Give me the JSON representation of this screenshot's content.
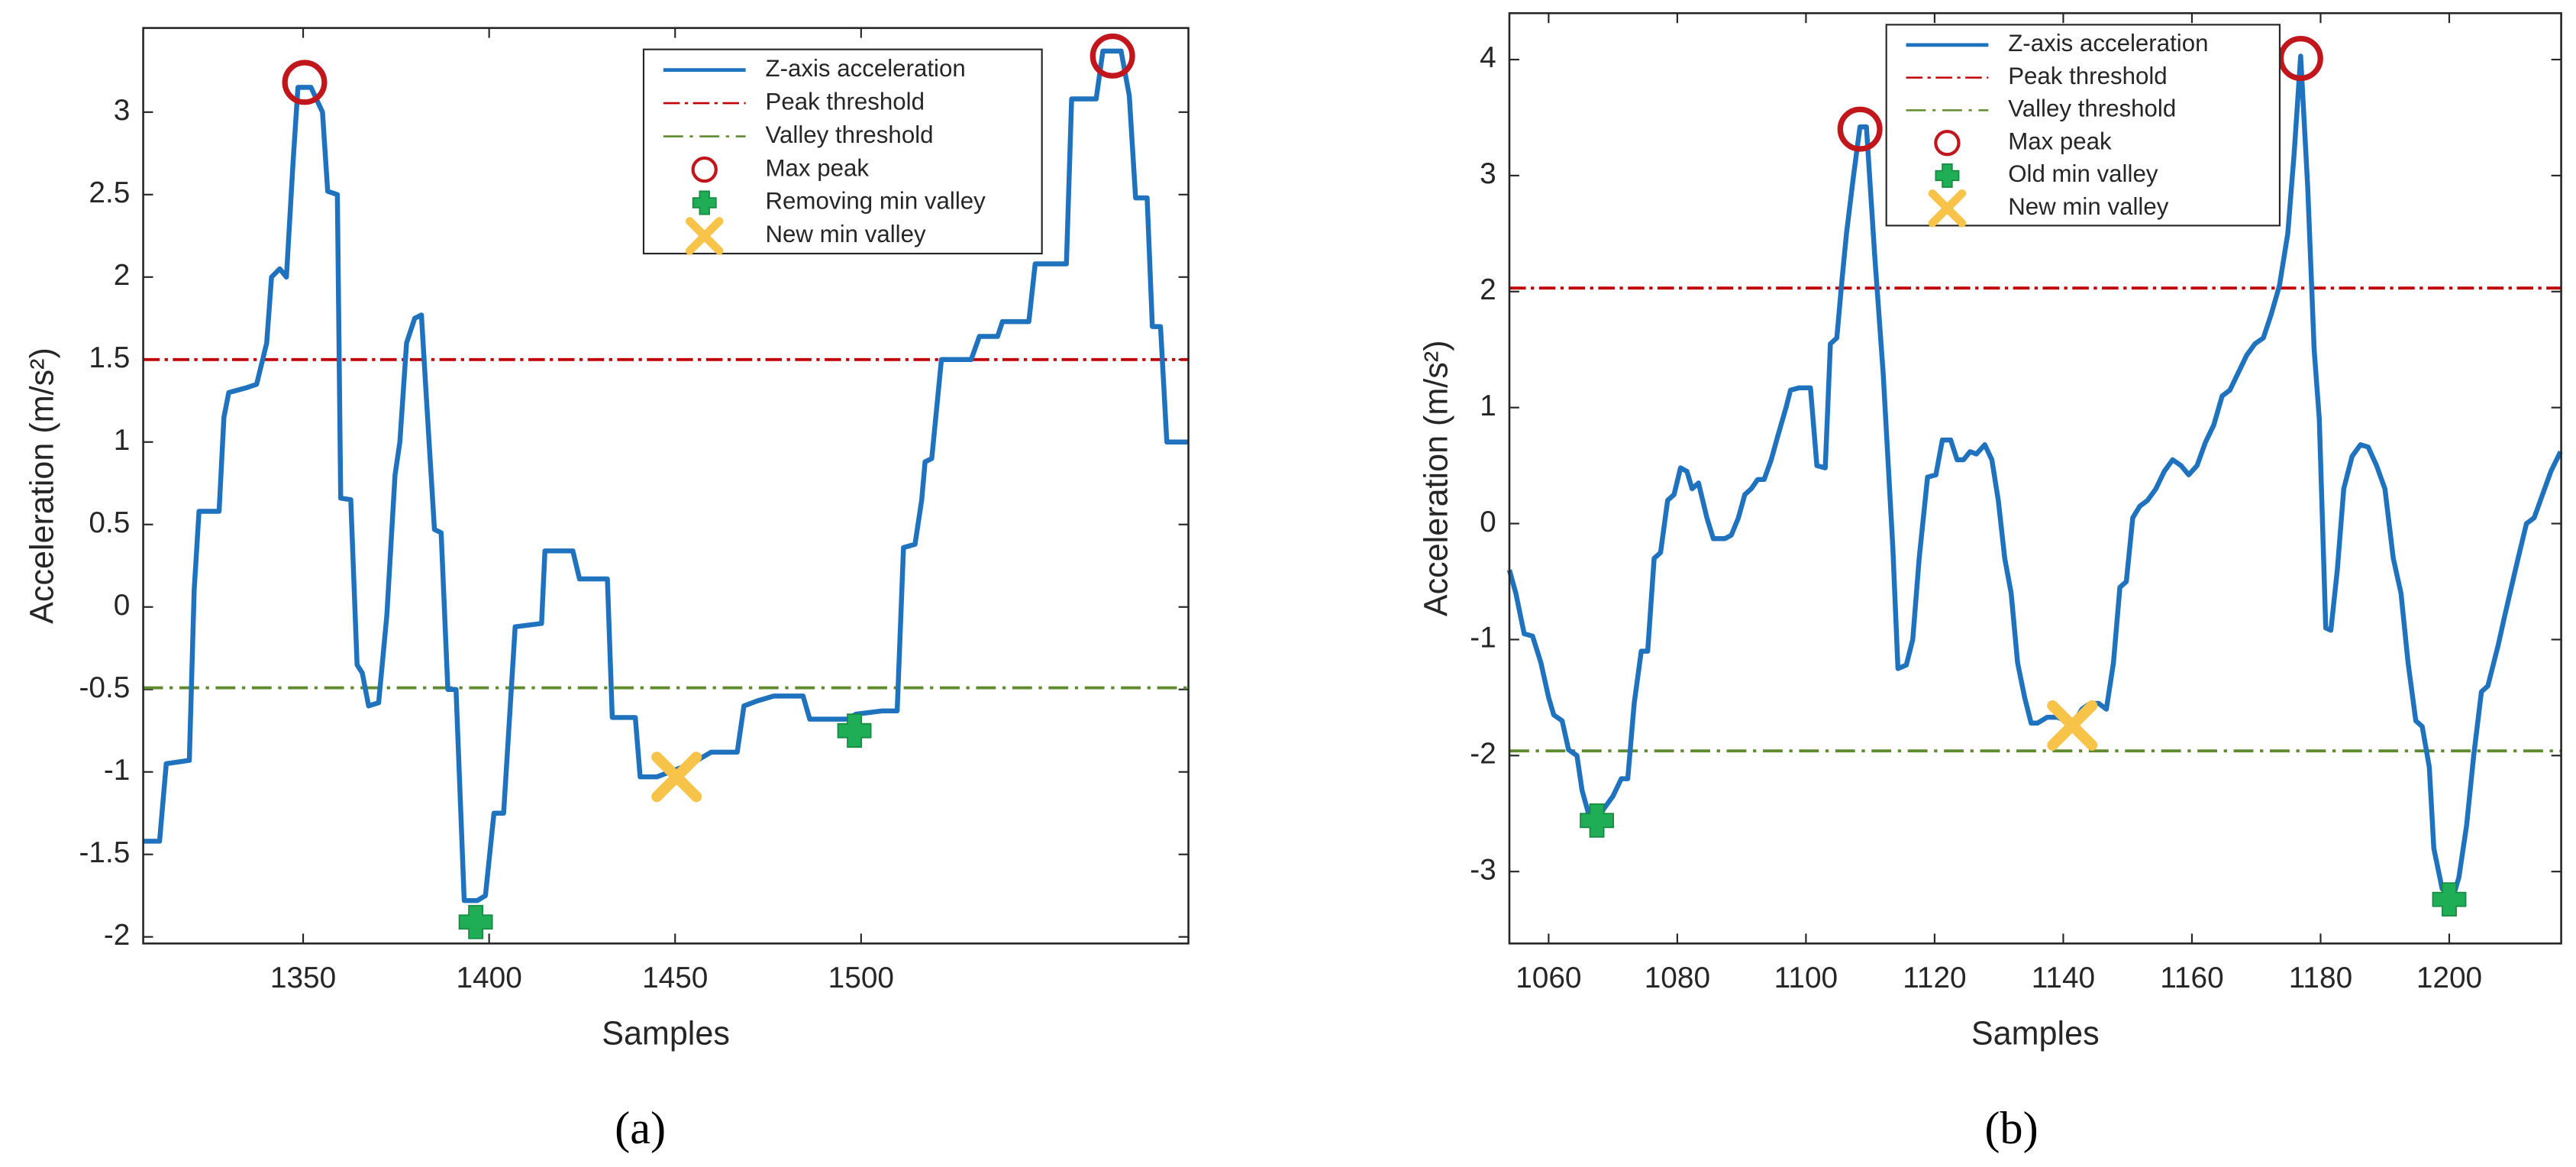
{
  "chart_data": [
    {
      "type": "line",
      "caption": "(a)",
      "xlabel": "Samples",
      "ylabel": "Acceleration (m/s²)",
      "xlim": [
        1307,
        1588
      ],
      "ylim": [
        -2.04,
        3.51
      ],
      "xticks": [
        1350,
        1400,
        1450,
        1500
      ],
      "yticks": [
        -2,
        -1.5,
        -1,
        -0.5,
        0,
        0.5,
        1,
        1.5,
        2,
        2.5,
        3
      ],
      "legend": "north",
      "series": [
        {
          "name": "Z-axis acceleration",
          "color": "#1f72bd",
          "x": [
            1307,
            1311.4,
            1313.2,
            1319.4,
            1320.7,
            1322,
            1327.4,
            1328.7,
            1330,
            1334.9,
            1337.5,
            1340.2,
            1341.5,
            1343.7,
            1345.5,
            1347.3,
            1348.6,
            1352.1,
            1355.2,
            1356.6,
            1359.2,
            1360.1,
            1362.8,
            1364.5,
            1365.9,
            1367.6,
            1370.3,
            1372.5,
            1374.7,
            1376,
            1377.8,
            1380,
            1381.8,
            1383.1,
            1385.3,
            1387.1,
            1388.9,
            1391.1,
            1393.3,
            1396.8,
            1399,
            1401.3,
            1403.9,
            1407,
            1414.1,
            1415,
            1422.5,
            1424.3,
            1431.8,
            1433.1,
            1439.3,
            1440.6,
            1445.1,
            1454.4,
            1459.7,
            1466.7,
            1468.5,
            1472,
            1476.5,
            1484.4,
            1486.2,
            1496.4,
            1498.6,
            1505.7,
            1509.7,
            1511.4,
            1514.5,
            1516.3,
            1517.2,
            1519,
            1520.3,
            1521.6,
            1529.6,
            1531.8,
            1536.7,
            1538,
            1545.1,
            1546.8,
            1555.2,
            1556.6,
            1563.2,
            1565,
            1569.9,
            1572.1,
            1573.8,
            1576.9,
            1578.3,
            1580.5,
            1582.2,
            1588
          ],
          "values": [
            -1.42,
            -1.42,
            -0.95,
            -0.93,
            0.1,
            0.58,
            0.58,
            1.15,
            1.3,
            1.33,
            1.35,
            1.6,
            2.0,
            2.05,
            2.0,
            2.7,
            3.15,
            3.15,
            3.0,
            2.52,
            2.5,
            0.66,
            0.65,
            -0.35,
            -0.4,
            -0.6,
            -0.58,
            -0.05,
            0.8,
            1.0,
            1.6,
            1.75,
            1.77,
            1.28,
            0.47,
            0.45,
            -0.5,
            -0.5,
            -1.78,
            -1.78,
            -1.75,
            -1.25,
            -1.25,
            -0.12,
            -0.1,
            0.34,
            0.34,
            0.17,
            0.17,
            -0.67,
            -0.67,
            -1.03,
            -1.03,
            -0.95,
            -0.88,
            -0.88,
            -0.6,
            -0.57,
            -0.54,
            -0.54,
            -0.68,
            -0.68,
            -0.65,
            -0.63,
            -0.63,
            0.36,
            0.38,
            0.65,
            0.88,
            0.9,
            1.2,
            1.5,
            1.5,
            1.64,
            1.64,
            1.73,
            1.73,
            2.08,
            2.08,
            3.08,
            3.08,
            3.37,
            3.37,
            3.1,
            2.48,
            2.48,
            1.7,
            1.7,
            1.0,
            1.0
          ]
        }
      ],
      "thresholds": [
        {
          "name": "Peak threshold",
          "color": "#c00000",
          "value": 1.5
        },
        {
          "name": "Valley threshold",
          "color": "#5f8a2e",
          "value": -0.49
        }
      ],
      "markers": [
        {
          "name": "Max peak",
          "marker": "circle",
          "color": "#c0161c",
          "x": [
            1350.4,
            1567.6
          ],
          "values": [
            3.18,
            3.34
          ]
        },
        {
          "name": "Removing min valley",
          "marker": "plus",
          "color": "#1fae55",
          "x": [
            1396.4,
            1498.2
          ],
          "values": [
            -1.91,
            -0.75
          ]
        },
        {
          "name": "New min valley",
          "marker": "x",
          "color": "#f7c449",
          "x": [
            1450.4
          ],
          "values": [
            -1.03
          ]
        }
      ]
    },
    {
      "type": "line",
      "caption": "(b)",
      "xlabel": "Samples",
      "ylabel": "Acceleration (m/s²)",
      "xlim": [
        1053.9,
        1217.4
      ],
      "ylim": [
        -3.62,
        4.4
      ],
      "xticks": [
        1060,
        1080,
        1100,
        1120,
        1140,
        1160,
        1180,
        1200
      ],
      "yticks": [
        -3,
        -2,
        -1,
        0,
        1,
        2,
        3,
        4
      ],
      "legend": "north",
      "series": [
        {
          "name": "Z-axis acceleration",
          "color": "#1f72bd",
          "x": [
            1053.9,
            1054.9,
            1056.2,
            1057.5,
            1058.8,
            1060,
            1060.8,
            1062.1,
            1063.1,
            1064.4,
            1065.2,
            1066.2,
            1067.5,
            1068.7,
            1070,
            1071.3,
            1072.3,
            1073.3,
            1074.4,
            1075.4,
            1076.4,
            1077.4,
            1078.5,
            1079.5,
            1080.5,
            1081.5,
            1082.3,
            1083.3,
            1084.6,
            1085.6,
            1087.4,
            1088.4,
            1089.5,
            1090.5,
            1091.5,
            1092.5,
            1093.5,
            1094.6,
            1095.6,
            1096.9,
            1097.6,
            1098.9,
            1100.7,
            1101.7,
            1103,
            1103.8,
            1104.8,
            1105.6,
            1106.3,
            1107.4,
            1108.4,
            1109.4,
            1110.7,
            1112,
            1113.5,
            1114.3,
            1115.6,
            1116.6,
            1117.6,
            1118.9,
            1120.2,
            1121.2,
            1122.5,
            1123.5,
            1124.5,
            1125.5,
            1126.5,
            1127.8,
            1128.9,
            1129.9,
            1130.9,
            1131.9,
            1132.9,
            1134,
            1135,
            1136,
            1137.5,
            1139.1,
            1140.4,
            1141.6,
            1142.9,
            1144.2,
            1145.5,
            1146.7,
            1147.8,
            1148.8,
            1149.8,
            1150.8,
            1151.9,
            1153.1,
            1154.4,
            1155.7,
            1157,
            1158.3,
            1159.5,
            1160.8,
            1162.1,
            1163.4,
            1164.7,
            1165.9,
            1167.2,
            1168.5,
            1169.8,
            1171.1,
            1172.3,
            1173.6,
            1174.9,
            1175.9,
            1176.9,
            1178,
            1179,
            1179.8,
            1180.8,
            1181.6,
            1182.6,
            1183.6,
            1184.9,
            1186.2,
            1187.4,
            1188.7,
            1190,
            1191.3,
            1192.5,
            1193.6,
            1194.8,
            1195.8,
            1196.9,
            1197.6,
            1198.9,
            1200.7,
            1201.5,
            1202.7,
            1203.8,
            1205,
            1206,
            1207.6,
            1208.6,
            1210.7,
            1212,
            1213.2,
            1214.5,
            1215.8,
            1217.3
          ],
          "values": [
            -0.4,
            -0.6,
            -0.95,
            -0.97,
            -1.2,
            -1.5,
            -1.65,
            -1.7,
            -1.95,
            -2.0,
            -2.3,
            -2.5,
            -2.55,
            -2.45,
            -2.35,
            -2.2,
            -2.2,
            -1.55,
            -1.1,
            -1.1,
            -0.3,
            -0.25,
            0.2,
            0.25,
            0.48,
            0.45,
            0.3,
            0.35,
            0.05,
            -0.13,
            -0.13,
            -0.1,
            0.05,
            0.25,
            0.3,
            0.38,
            0.38,
            0.55,
            0.75,
            1.0,
            1.15,
            1.17,
            1.17,
            0.5,
            0.48,
            1.55,
            1.6,
            2.1,
            2.5,
            3.0,
            3.42,
            3.42,
            2.3,
            1.3,
            -0.2,
            -1.25,
            -1.22,
            -1.0,
            -0.3,
            0.4,
            0.42,
            0.72,
            0.72,
            0.55,
            0.55,
            0.62,
            0.6,
            0.68,
            0.55,
            0.2,
            -0.3,
            -0.6,
            -1.2,
            -1.5,
            -1.72,
            -1.72,
            -1.67,
            -1.67,
            -1.7,
            -1.72,
            -1.6,
            -1.55,
            -1.55,
            -1.6,
            -1.2,
            -0.55,
            -0.5,
            0.05,
            0.15,
            0.2,
            0.3,
            0.45,
            0.55,
            0.5,
            0.42,
            0.5,
            0.7,
            0.85,
            1.1,
            1.15,
            1.3,
            1.45,
            1.55,
            1.6,
            1.8,
            2.05,
            2.5,
            3.2,
            4.03,
            2.9,
            1.5,
            0.9,
            -0.9,
            -0.92,
            -0.4,
            0.3,
            0.58,
            0.68,
            0.66,
            0.5,
            0.3,
            -0.3,
            -0.6,
            -1.2,
            -1.7,
            -1.75,
            -2.1,
            -2.8,
            -3.15,
            -3.2,
            -3.05,
            -2.6,
            -2.0,
            -1.45,
            -1.4,
            -1.05,
            -0.8,
            -0.3,
            0.0,
            0.05,
            0.25,
            0.45,
            0.62
          ]
        }
      ],
      "thresholds": [
        {
          "name": "Peak threshold",
          "color": "#c00000",
          "value": 2.03
        },
        {
          "name": "Valley threshold",
          "color": "#5f8a2e",
          "value": -1.96
        }
      ],
      "markers": [
        {
          "name": "Max peak",
          "marker": "circle",
          "color": "#c0161c",
          "x": [
            1108.4,
            1176.9
          ],
          "values": [
            3.4,
            4.01
          ]
        },
        {
          "name": "Old min valley",
          "marker": "plus",
          "color": "#1fae55",
          "x": [
            1067.5,
            1200
          ],
          "values": [
            -2.56,
            -3.24
          ]
        },
        {
          "name": "New min valley",
          "marker": "x",
          "color": "#f7c449",
          "x": [
            1141.4
          ],
          "values": [
            -1.74
          ]
        }
      ]
    }
  ]
}
